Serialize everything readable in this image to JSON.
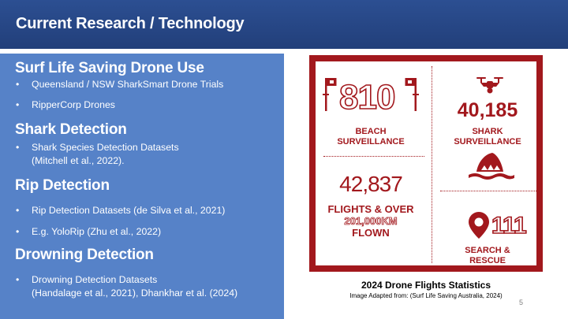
{
  "slide": {
    "title": "Current Research / Technology",
    "slide_number": "5"
  },
  "left_panel": {
    "sections": [
      {
        "heading": "Surf Life Saving Drone Use",
        "bullets": [
          "Queensland / NSW SharkSmart Drone Trials",
          "RipperCorp Drones"
        ]
      },
      {
        "heading": "Shark Detection",
        "bullets": [
          [
            "Shark Species Detection Datasets",
            "(Mitchell et al., 2022)."
          ]
        ]
      },
      {
        "heading": "Rip Detection",
        "bullets": [
          "Rip Detection Datasets (de Silva et al., 2021)",
          "E.g. YoloRip  (Zhu et al., 2022)"
        ]
      },
      {
        "heading": "Drowning Detection",
        "bullets": [
          [
            "Drowning Detection Datasets",
            "(Handalage et al., 2021), Dhankhar et al. (2024)"
          ]
        ]
      }
    ],
    "bullet_glyph": "•"
  },
  "infographic": {
    "border_color": "#a2181d",
    "beach": {
      "value": "810",
      "label_line1": "BEACH",
      "label_line2": "SURVEILLANCE",
      "icon": "beach-flags-icon"
    },
    "shark": {
      "value": "40,185",
      "label_line1": "SHARK",
      "label_line2": "SURVEILLANCE",
      "icon": "drone-icon",
      "icon2": "shark-fin-icon"
    },
    "flights": {
      "value": "42,837",
      "label_line1": "FLIGHTS & OVER",
      "label_line2": "201,000KM",
      "label_line3": "FLOWN"
    },
    "rescue": {
      "value": "111",
      "label_line1": "SEARCH &",
      "label_line2": "RESCUE",
      "icon": "location-pin-icon"
    }
  },
  "caption": {
    "title": "2024 Drone Flights Statistics",
    "source": "Image Adapted from: (Surf Life Saving Australia, 2024)"
  }
}
